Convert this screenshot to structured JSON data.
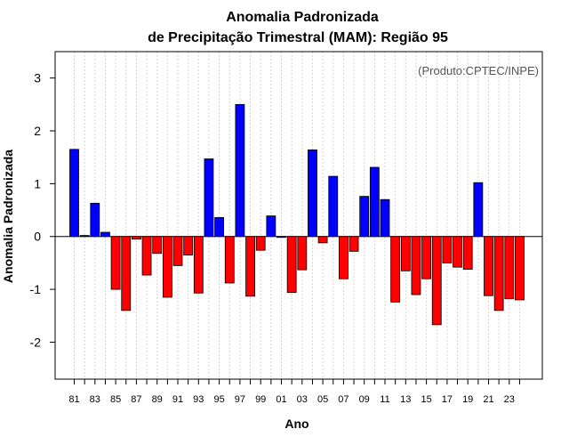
{
  "chart_data": {
    "type": "bar",
    "title": "Anomalia Padronizada",
    "subtitle": "de Precipitação Trimestral (MAM): Região 95",
    "xlabel": "Ano",
    "ylabel": "Anomalia Padronizada",
    "annotation": "(Produto:CPTEC/INPE)",
    "ylim": [
      -2.7,
      3.5
    ],
    "yticks": [
      -2,
      -1,
      0,
      1,
      2,
      3
    ],
    "tick_labels": [
      "81",
      "83",
      "85",
      "87",
      "89",
      "91",
      "93",
      "95",
      "97",
      "99",
      "01",
      "03",
      "05",
      "07",
      "09",
      "11",
      "13",
      "15",
      "17",
      "19",
      "21",
      "23"
    ],
    "years": [
      1981,
      1982,
      1983,
      1984,
      1985,
      1986,
      1987,
      1988,
      1989,
      1990,
      1991,
      1992,
      1993,
      1994,
      1995,
      1996,
      1997,
      1998,
      1999,
      2000,
      2001,
      2002,
      2003,
      2004,
      2005,
      2006,
      2007,
      2008,
      2009,
      2010,
      2011,
      2012,
      2013,
      2014,
      2015,
      2016,
      2017,
      2018,
      2019,
      2020,
      2021,
      2022,
      2023,
      2024
    ],
    "values": [
      1.65,
      0.02,
      0.63,
      0.08,
      -1.0,
      -1.4,
      -0.05,
      -0.73,
      -0.32,
      -1.15,
      -0.55,
      -0.35,
      -1.07,
      1.47,
      0.36,
      -0.88,
      2.5,
      -1.13,
      -0.26,
      0.39,
      0.0,
      -1.06,
      -0.63,
      1.64,
      -0.12,
      1.14,
      -0.8,
      -0.28,
      0.76,
      1.31,
      0.7,
      -1.24,
      -0.65,
      -1.1,
      -0.8,
      -1.67,
      -0.5,
      -0.58,
      -0.62,
      1.02,
      -1.12,
      -1.4,
      -1.18,
      -1.2
    ],
    "colors": {
      "positive": "#0000ff",
      "negative": "#ff0000",
      "zero_line": "#000000",
      "grid": "#d3d3d3"
    }
  }
}
